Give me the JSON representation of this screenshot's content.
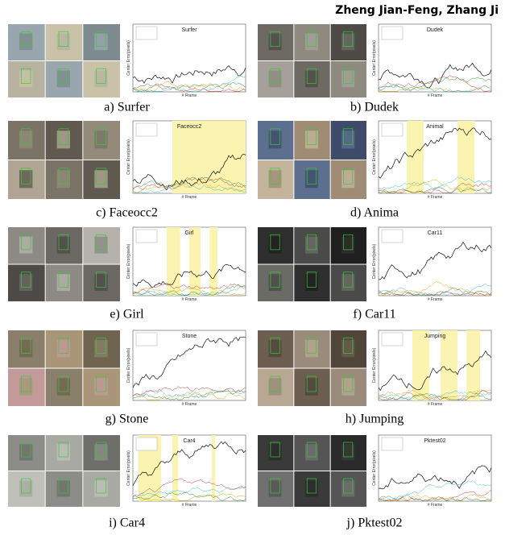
{
  "header": {
    "author": "Zheng Jian-Feng, Zhang Ji"
  },
  "axis_labels": {
    "y": "Center Error(pixels)",
    "x": "# Frame"
  },
  "panels": [
    {
      "caption": "a) Surfer",
      "chart_title": "Surfer"
    },
    {
      "caption": "b) Dudek",
      "chart_title": "Dudek"
    },
    {
      "caption": "c) Faceocc2",
      "chart_title": "Faceocc2"
    },
    {
      "caption": "d) Anima",
      "chart_title": "Animal"
    },
    {
      "caption": "e) Girl",
      "chart_title": "Girl"
    },
    {
      "caption": "f) Car11",
      "chart_title": "Car11"
    },
    {
      "caption": "g) Stone",
      "chart_title": "Stone"
    },
    {
      "caption": "h) Jumping",
      "chart_title": "Jumping"
    },
    {
      "caption": "i) Car4",
      "chart_title": "Car4"
    },
    {
      "caption": "j) Pktest02",
      "chart_title": "Pktest02"
    }
  ]
}
